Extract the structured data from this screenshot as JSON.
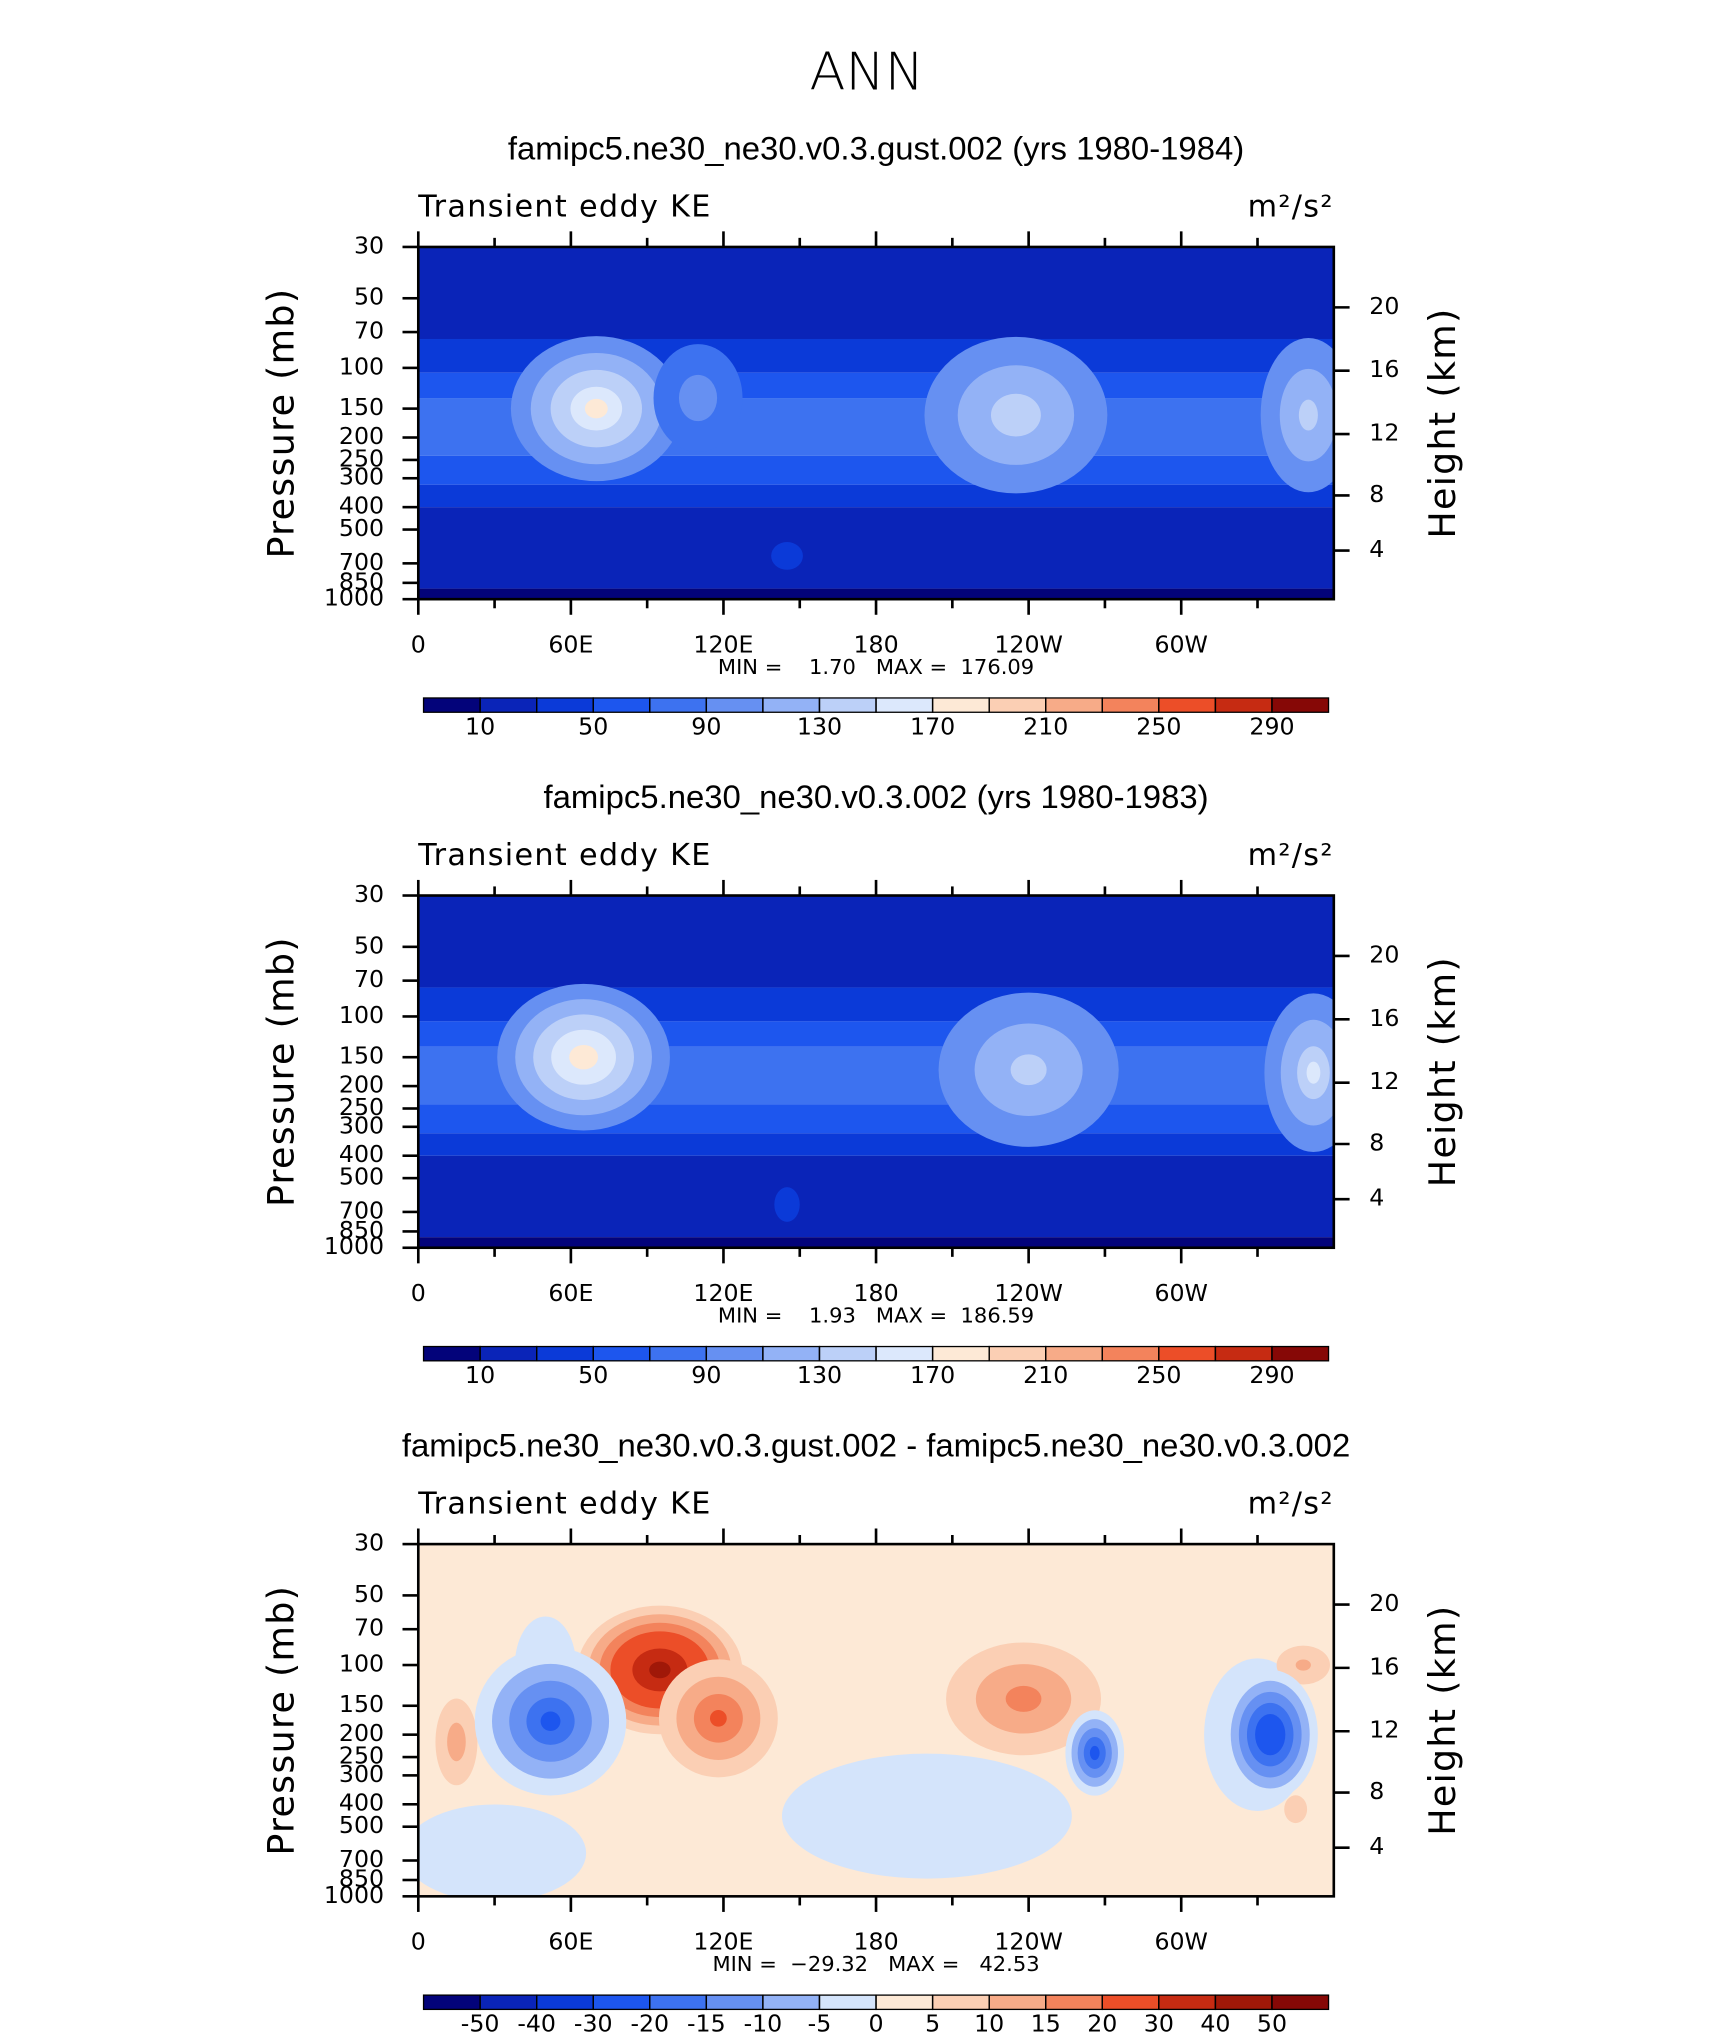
{
  "title": "ANN",
  "chart_data": [
    {
      "type": "contour",
      "title": "famipc5.ne30_ne30.v0.3.gust.002 (yrs 1980-1984)",
      "left_text": "Transient eddy KE",
      "units": "m²/s²",
      "ylabel": "Pressure (mb)",
      "y2label": "Height (km)",
      "stats": "MIN =    1.70   MAX =  176.09",
      "xlim": [
        0,
        360
      ],
      "xticks": [
        0,
        {
          "value": 60,
          "label": "60E"
        },
        {
          "value": 120,
          "label": "120E"
        },
        180,
        {
          "value": 240,
          "label": "120W"
        },
        {
          "value": 300,
          "label": "60W"
        }
      ],
      "xminorticks": [
        30,
        90,
        150,
        210,
        270,
        330
      ],
      "ylim": [
        1000,
        30
      ],
      "log_scale": true,
      "yticks": [
        30,
        50,
        70,
        100,
        150,
        200,
        250,
        300,
        400,
        500,
        700,
        850,
        1000
      ],
      "y2ticks": [
        4,
        8,
        12,
        16,
        20
      ],
      "colorbar": {
        "levels": [
          10,
          30,
          50,
          70,
          90,
          110,
          130,
          150,
          170,
          190,
          210,
          230,
          250,
          270,
          290
        ],
        "ticks": [
          10,
          50,
          90,
          130,
          170,
          210,
          250,
          290
        ],
        "colors": [
          "#03037a",
          "#0a24b8",
          "#0b3ad8",
          "#1d56ee",
          "#3d72f0",
          "#6690f2",
          "#93b2f6",
          "#bcd0f8",
          "#dce8fc",
          "#fde9d6",
          "#fbcfb4",
          "#f7ab88",
          "#f3835c",
          "#ec4e28",
          "#c62b12",
          "#860806"
        ]
      },
      "layers": [
        {
          "top": 30,
          "bottom": 75,
          "value": 20
        },
        {
          "top": 75,
          "bottom": 105,
          "value": 40
        },
        {
          "top": 105,
          "bottom": 135,
          "value": 60
        },
        {
          "top": 135,
          "bottom": 240,
          "value": 80
        },
        {
          "top": 240,
          "bottom": 320,
          "value": 60
        },
        {
          "top": 320,
          "bottom": 400,
          "value": 40
        },
        {
          "top": 400,
          "bottom": 900,
          "value": 20
        },
        {
          "top": 900,
          "bottom": 1000,
          "value": 5
        }
      ],
      "blobs": [
        {
          "lon": 70,
          "p": 150,
          "peak": 176,
          "width": 75,
          "depth": 0.35
        },
        {
          "lon": 110,
          "p": 135,
          "peak": 105,
          "width": 45,
          "depth": 0.3
        },
        {
          "lon": 235,
          "p": 160,
          "peak": 145,
          "width": 85,
          "depth": 0.4
        },
        {
          "lon": 350,
          "p": 160,
          "peak": 140,
          "width": 45,
          "depth": 0.4
        },
        {
          "lon": 145,
          "p": 650,
          "peak": 40,
          "width": 25,
          "depth": 0.12
        }
      ]
    },
    {
      "type": "contour",
      "title": "famipc5.ne30_ne30.v0.3.002 (yrs 1980-1983)",
      "left_text": "Transient eddy KE",
      "units": "m²/s²",
      "ylabel": "Pressure (mb)",
      "y2label": "Height (km)",
      "stats": "MIN =    1.93   MAX =  186.59",
      "xlim": [
        0,
        360
      ],
      "xticks": [
        0,
        {
          "value": 60,
          "label": "60E"
        },
        {
          "value": 120,
          "label": "120E"
        },
        180,
        {
          "value": 240,
          "label": "120W"
        },
        {
          "value": 300,
          "label": "60W"
        }
      ],
      "xminorticks": [
        30,
        90,
        150,
        210,
        270,
        330
      ],
      "ylim": [
        1000,
        30
      ],
      "log_scale": true,
      "yticks": [
        30,
        50,
        70,
        100,
        150,
        200,
        250,
        300,
        400,
        500,
        700,
        850,
        1000
      ],
      "y2ticks": [
        4,
        8,
        12,
        16,
        20
      ],
      "colorbar": {
        "levels": [
          10,
          30,
          50,
          70,
          90,
          110,
          130,
          150,
          170,
          190,
          210,
          230,
          250,
          270,
          290
        ],
        "ticks": [
          10,
          50,
          90,
          130,
          170,
          210,
          250,
          290
        ],
        "colors": [
          "#03037a",
          "#0a24b8",
          "#0b3ad8",
          "#1d56ee",
          "#3d72f0",
          "#6690f2",
          "#93b2f6",
          "#bcd0f8",
          "#dce8fc",
          "#fde9d6",
          "#fbcfb4",
          "#f7ab88",
          "#f3835c",
          "#ec4e28",
          "#c62b12",
          "#860806"
        ]
      },
      "layers": [
        {
          "top": 30,
          "bottom": 75,
          "value": 20
        },
        {
          "top": 75,
          "bottom": 105,
          "value": 40
        },
        {
          "top": 105,
          "bottom": 135,
          "value": 60
        },
        {
          "top": 135,
          "bottom": 240,
          "value": 80
        },
        {
          "top": 240,
          "bottom": 320,
          "value": 60
        },
        {
          "top": 320,
          "bottom": 400,
          "value": 40
        },
        {
          "top": 400,
          "bottom": 900,
          "value": 20
        },
        {
          "top": 900,
          "bottom": 1000,
          "value": 5
        }
      ],
      "blobs": [
        {
          "lon": 65,
          "p": 150,
          "peak": 186,
          "width": 75,
          "depth": 0.35
        },
        {
          "lon": 240,
          "p": 170,
          "peak": 140,
          "width": 85,
          "depth": 0.4
        },
        {
          "lon": 352,
          "p": 175,
          "peak": 150,
          "width": 45,
          "depth": 0.4
        },
        {
          "lon": 145,
          "p": 650,
          "peak": 40,
          "width": 20,
          "depth": 0.15
        }
      ]
    },
    {
      "type": "contour",
      "title": "famipc5.ne30_ne30.v0.3.gust.002 - famipc5.ne30_ne30.v0.3.002",
      "left_text": "Transient eddy KE",
      "units": "m²/s²",
      "ylabel": "Pressure (mb)",
      "y2label": "Height (km)",
      "stats": "MIN =  −29.32   MAX =   42.53",
      "xlim": [
        0,
        360
      ],
      "xticks": [
        0,
        {
          "value": 60,
          "label": "60E"
        },
        {
          "value": 120,
          "label": "120E"
        },
        180,
        {
          "value": 240,
          "label": "120W"
        },
        {
          "value": 300,
          "label": "60W"
        }
      ],
      "xminorticks": [
        30,
        90,
        150,
        210,
        270,
        330
      ],
      "ylim": [
        1000,
        30
      ],
      "log_scale": true,
      "yticks": [
        30,
        50,
        70,
        100,
        150,
        200,
        250,
        300,
        400,
        500,
        700,
        850,
        1000
      ],
      "y2ticks": [
        4,
        8,
        12,
        16,
        20
      ],
      "colorbar": {
        "levels": [
          -50,
          -40,
          -30,
          -20,
          -15,
          -10,
          -5,
          0,
          5,
          10,
          15,
          20,
          30,
          40,
          50
        ],
        "ticks": [
          -50,
          -40,
          -30,
          -20,
          -15,
          -10,
          -5,
          0,
          5,
          10,
          15,
          20,
          30,
          40,
          50
        ],
        "colors": [
          "#03037a",
          "#0a24b8",
          "#0b3ad8",
          "#1d56ee",
          "#3d72f0",
          "#6690f2",
          "#93b2f6",
          "#d4e4fb",
          "#fde9d6",
          "#fbcfb4",
          "#f7ab88",
          "#f3835c",
          "#ec4e28",
          "#c62b12",
          "#a01808",
          "#860806"
        ]
      },
      "layers": [
        {
          "top": 30,
          "bottom": 1000,
          "value": 2
        }
      ],
      "blobs": [
        {
          "lon": 200,
          "p": 450,
          "peak": -3,
          "width": 190,
          "depth": 0.45
        },
        {
          "lon": 30,
          "p": 650,
          "peak": -3,
          "width": 120,
          "depth": 0.35
        },
        {
          "lon": 50,
          "p": 100,
          "peak": -3,
          "width": 40,
          "depth": 0.35
        },
        {
          "lon": 330,
          "p": 200,
          "peak": -3,
          "width": 70,
          "depth": 0.55
        },
        {
          "lon": 95,
          "p": 105,
          "peak": 42.53,
          "width": 70,
          "depth": 0.3
        },
        {
          "lon": 118,
          "p": 170,
          "peak": 22,
          "width": 55,
          "depth": 0.3
        },
        {
          "lon": 238,
          "p": 140,
          "peak": 18,
          "width": 75,
          "depth": 0.3
        },
        {
          "lon": 348,
          "p": 100,
          "peak": 12,
          "width": 30,
          "depth": 0.12
        },
        {
          "lon": 15,
          "p": 215,
          "peak": 14,
          "width": 22,
          "depth": 0.25
        },
        {
          "lon": 345,
          "p": 420,
          "peak": 8,
          "width": 18,
          "depth": 0.12
        },
        {
          "lon": 52,
          "p": 175,
          "peak": -22,
          "width": 65,
          "depth": 0.35
        },
        {
          "lon": 266,
          "p": 240,
          "peak": -24,
          "width": 25,
          "depth": 0.2
        },
        {
          "lon": 335,
          "p": 200,
          "peak": -29.32,
          "width": 40,
          "depth": 0.3
        }
      ]
    }
  ]
}
